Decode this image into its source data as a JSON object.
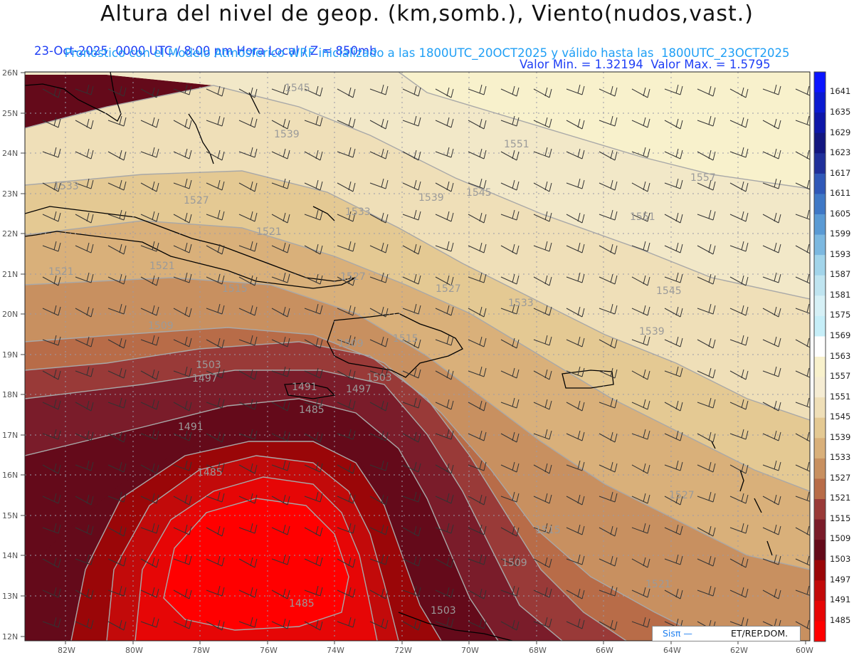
{
  "header": {
    "title": "Altura del nivel de geop. (km,somb.), Viento(nudos,vast.)",
    "line1_left": "23-Oct-2025  0000 UTC / 8:00 pm Hora Local / Z = 850mb",
    "line1_right": "Valor Min. = 1.32194  Valor Max. = 1.5795",
    "line2": "Pronóstico con el Modelo Atmósferico WRF inicializado a las 1800UTC_20OCT2025 y válido hasta las  1800UTC_23OCT2025"
  },
  "axes": {
    "lat_labels": [
      "26N",
      "25N",
      "24N",
      "23N",
      "22N",
      "21N",
      "20N",
      "19N",
      "18N",
      "17N",
      "16N",
      "15N",
      "14N",
      "13N",
      "12N"
    ],
    "lon_labels": [
      "82W",
      "80W",
      "78W",
      "76W",
      "74W",
      "72W",
      "70W",
      "68W",
      "66W",
      "64W",
      "62W",
      "60W"
    ]
  },
  "colorbar": {
    "levels": [
      "1641",
      "1635",
      "1629",
      "1623",
      "1617",
      "1611",
      "1605",
      "1599",
      "1593",
      "1587",
      "1581",
      "1575",
      "1569",
      "1563",
      "1557",
      "1551",
      "1545",
      "1539",
      "1533",
      "1527",
      "1521",
      "1515",
      "1509",
      "1503",
      "1497",
      "1491",
      "1485"
    ],
    "colors": [
      "#0a14ff",
      "#0a1ad0",
      "#0d16a8",
      "#121680",
      "#1f2f9a",
      "#2f58b8",
      "#3f78c6",
      "#5a9ad4",
      "#7cb8e0",
      "#a2d4ea",
      "#bfe4f0",
      "#d6f0f6",
      "#c6eef8",
      "#ffffff",
      "#f8f1cc",
      "#f5ecd3",
      "#efdfb8",
      "#e4c993",
      "#d9b07a",
      "#c89060",
      "#b86c48",
      "#993a38",
      "#7a1c2a",
      "#640a1a",
      "#9a0608",
      "#c20a0a",
      "#e60606",
      "#ff0000"
    ]
  },
  "contour_labels": [
    "1545",
    "1539",
    "1551",
    "1557",
    "1533",
    "1545",
    "1551",
    "1539",
    "1533",
    "1527",
    "1521",
    "1527",
    "1521",
    "1515",
    "1521",
    "1527",
    "1545",
    "1533",
    "1539",
    "1509",
    "1515",
    "1509",
    "1503",
    "1497",
    "1491",
    "1497",
    "1503",
    "1485",
    "1491",
    "1485",
    "1515",
    "1509",
    "1503",
    "1485",
    "1527",
    "1521"
  ],
  "logo": {
    "left_text": "Sisπ —",
    "right_text": "ET/REP.DOM."
  }
}
